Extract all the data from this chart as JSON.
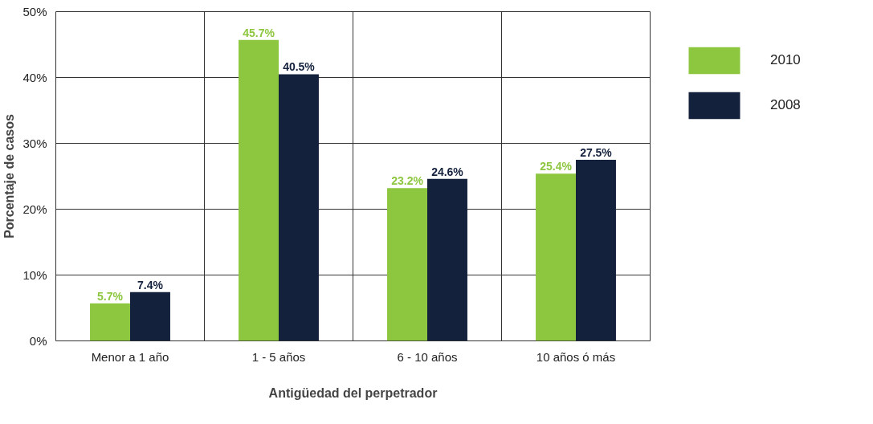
{
  "chart_data": {
    "type": "bar",
    "xlabel": "Antigüedad del perpetrador",
    "ylabel": "Porcentaje de casos",
    "categories": [
      "Menor a 1 año",
      "1 - 5 años",
      "6 - 10 años",
      "10 años ó más"
    ],
    "series": [
      {
        "name": "2010",
        "color": "#8dc63f",
        "values": [
          5.7,
          45.7,
          23.2,
          25.4
        ],
        "value_labels": [
          "5.7%",
          "45.7%",
          "23.2%",
          "25.4%"
        ]
      },
      {
        "name": "2008",
        "color": "#14213d",
        "values": [
          7.4,
          40.5,
          24.6,
          27.5
        ],
        "value_labels": [
          "7.4%",
          "40.5%",
          "24.6%",
          "27.5%"
        ]
      }
    ],
    "ylim": [
      0,
      50
    ],
    "yticks": [
      {
        "value": 0,
        "label": "0%"
      },
      {
        "value": 10,
        "label": "10%"
      },
      {
        "value": 20,
        "label": "20%"
      },
      {
        "value": 30,
        "label": "30%"
      },
      {
        "value": 40,
        "label": "40%"
      },
      {
        "value": 50,
        "label": "50%"
      }
    ],
    "grid": true,
    "legend": "top right"
  }
}
